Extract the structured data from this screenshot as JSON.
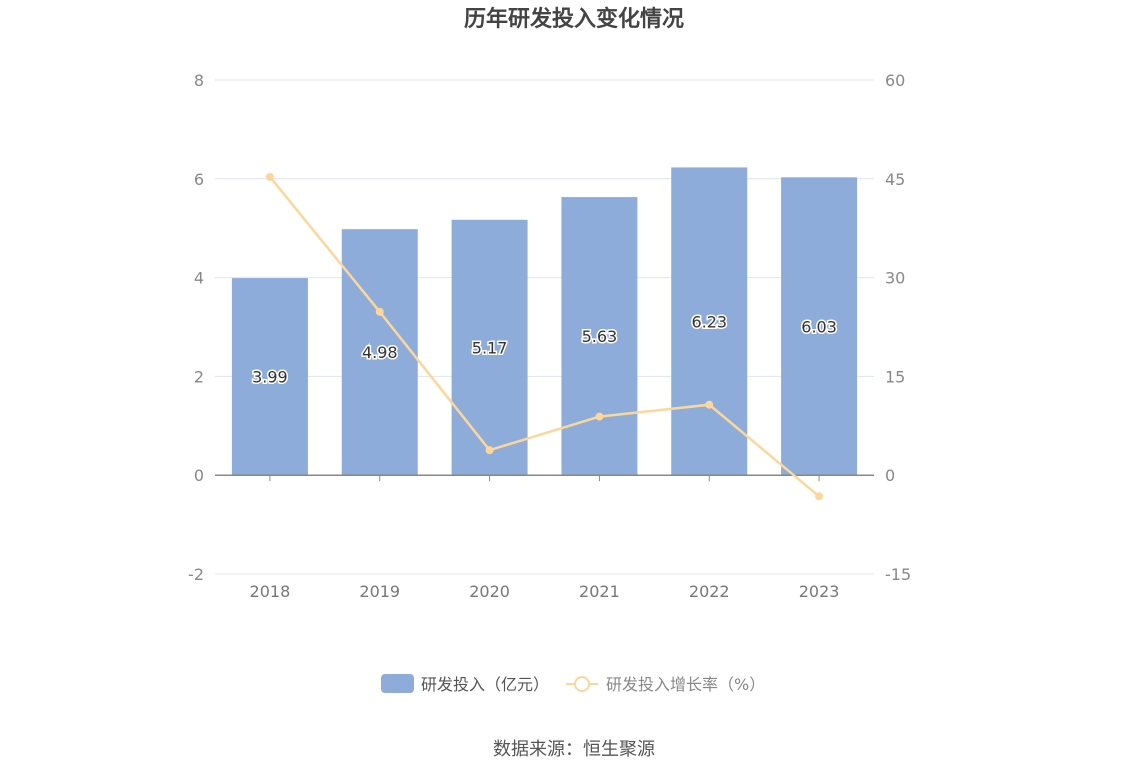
{
  "title": "历年研发投入变化情况",
  "source": "数据来源：恒生聚源",
  "colors": {
    "bar": "#8eacda",
    "line": "#fcd79b",
    "axis": "#888888",
    "grid": "#e0e4ee"
  },
  "chart_data": {
    "type": "bar",
    "categories": [
      "2018",
      "2019",
      "2020",
      "2021",
      "2022",
      "2023"
    ],
    "series": [
      {
        "name": "研发投入（亿元）",
        "type": "bar",
        "axis": "left",
        "values": [
          3.99,
          4.98,
          5.17,
          5.63,
          6.23,
          6.03
        ],
        "labels": [
          "3.99",
          "4.98",
          "5.17",
          "5.63",
          "6.23",
          "6.03"
        ]
      },
      {
        "name": "研发投入增长率（%）",
        "type": "line",
        "axis": "right",
        "values": [
          45.3,
          24.8,
          3.8,
          8.9,
          10.7,
          -3.2
        ]
      }
    ],
    "y_left": {
      "ylim": [
        -2,
        8
      ],
      "ticks": [
        "-2",
        "0",
        "2",
        "4",
        "6",
        "8"
      ]
    },
    "y_right": {
      "ylim": [
        -15,
        60
      ],
      "ticks": [
        "-15",
        "0",
        "15",
        "30",
        "45",
        "60"
      ]
    },
    "grid": true,
    "legend_position": "bottom"
  }
}
